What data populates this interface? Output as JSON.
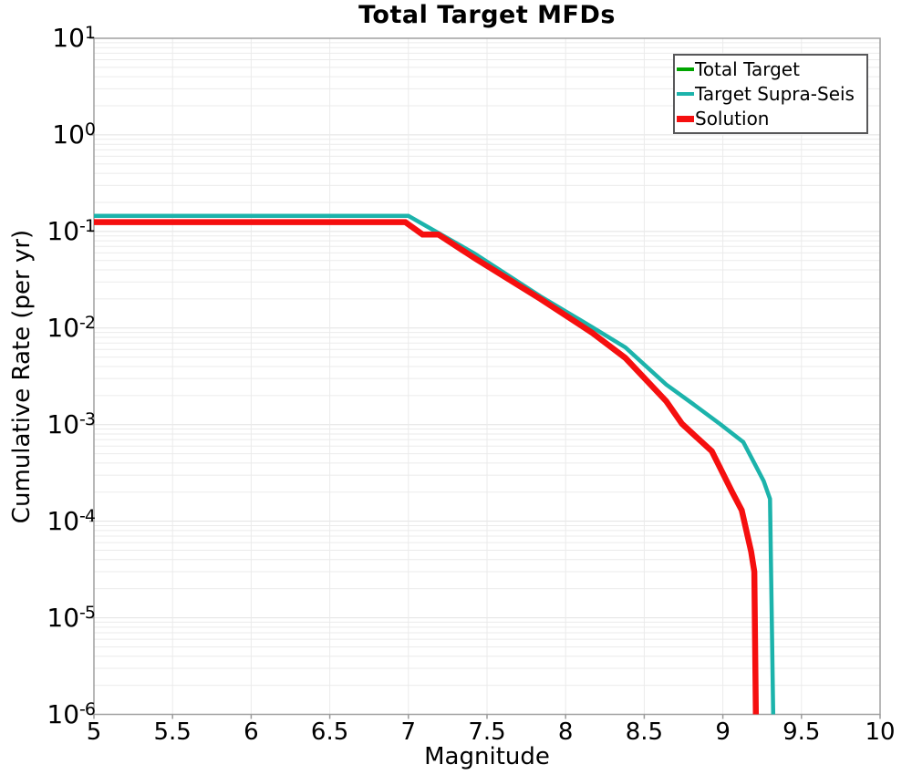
{
  "title": "Total Target MFDs",
  "axes": {
    "xlabel": "Magnitude",
    "ylabel": "Cumulative Rate (per yr)",
    "x_ticks": [
      "5",
      "5.5",
      "6",
      "6.5",
      "7",
      "7.5",
      "8",
      "8.5",
      "9",
      "9.5",
      "10"
    ],
    "y_tick_exponents": [
      "1",
      "0",
      "-1",
      "-2",
      "-3",
      "-4",
      "-5",
      "-6"
    ]
  },
  "legend": {
    "items": [
      {
        "label": "Total Target",
        "color": "#00A500",
        "thickness": 4
      },
      {
        "label": "Target Supra-Seis",
        "color": "#1CB3AB",
        "thickness": 4
      },
      {
        "label": "Solution",
        "color": "#F50F0F",
        "thickness": 7
      }
    ]
  },
  "colors": {
    "grid_minor": "#ebebeb",
    "grid_major": "#e2e2e2",
    "frame": "#a0a0a0",
    "tick": "#9a9a9a",
    "text": "#000000"
  },
  "chart_data": {
    "type": "line",
    "title": "Total Target MFDs",
    "xlabel": "Magnitude",
    "ylabel": "Cumulative Rate (per yr)",
    "xlim": [
      5,
      10
    ],
    "ylim": [
      1e-06,
      10
    ],
    "y_scale": "log",
    "grid": "minor-log-horizontal, 0.5-step-vertical",
    "legend_position": "top-right-inside",
    "series": [
      {
        "name": "Total Target",
        "color": "#00A500",
        "width": 3.5,
        "points": [
          [
            5.0,
            0.145
          ],
          [
            7.0,
            0.145
          ],
          [
            7.42,
            0.0592
          ],
          [
            7.84,
            0.0213
          ],
          [
            8.17,
            0.0102
          ],
          [
            8.38,
            0.0063
          ],
          [
            8.64,
            0.0026
          ],
          [
            8.81,
            0.00164
          ],
          [
            8.98,
            0.00102
          ],
          [
            9.13,
            0.00066
          ],
          [
            9.2,
            0.0004
          ],
          [
            9.26,
            0.00026
          ],
          [
            9.3,
            0.00017
          ],
          [
            9.32,
            1e-06
          ]
        ]
      },
      {
        "name": "Target Supra-Seis",
        "color": "#1CB3AB",
        "width": 4.5,
        "points": [
          [
            5.0,
            0.145
          ],
          [
            7.0,
            0.145
          ],
          [
            7.42,
            0.0592
          ],
          [
            7.84,
            0.0213
          ],
          [
            8.17,
            0.0102
          ],
          [
            8.38,
            0.0063
          ],
          [
            8.64,
            0.0026
          ],
          [
            8.81,
            0.00164
          ],
          [
            8.98,
            0.00102
          ],
          [
            9.13,
            0.00066
          ],
          [
            9.2,
            0.0004
          ],
          [
            9.26,
            0.00026
          ],
          [
            9.3,
            0.00017
          ],
          [
            9.32,
            1e-06
          ]
        ]
      },
      {
        "name": "Solution",
        "color": "#F50F0F",
        "width": 6.5,
        "points": [
          [
            5.0,
            0.125
          ],
          [
            6.98,
            0.125
          ],
          [
            7.09,
            0.093
          ],
          [
            7.19,
            0.093
          ],
          [
            7.42,
            0.0531
          ],
          [
            7.84,
            0.02
          ],
          [
            8.17,
            0.0089
          ],
          [
            8.38,
            0.0049
          ],
          [
            8.64,
            0.00175
          ],
          [
            8.74,
            0.00102
          ],
          [
            8.93,
            0.00053
          ],
          [
            9.06,
            0.0002
          ],
          [
            9.12,
            0.00013
          ],
          [
            9.18,
            4.85e-05
          ],
          [
            9.2,
            3e-05
          ],
          [
            9.21,
            1e-06
          ]
        ]
      }
    ]
  }
}
